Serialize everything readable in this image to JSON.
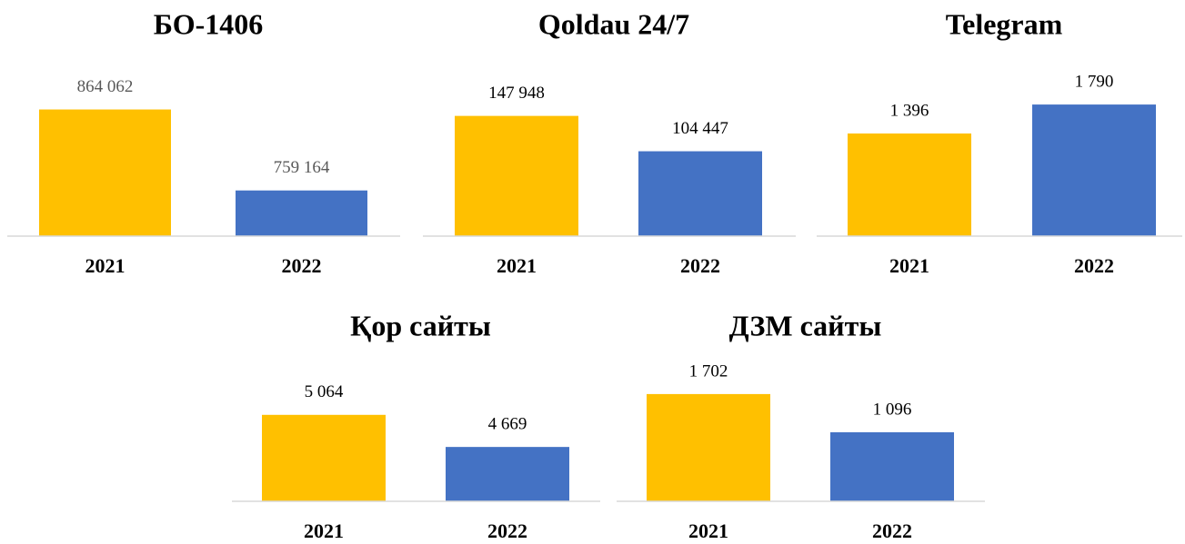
{
  "chart_data": [
    {
      "type": "bar",
      "title": "БО-1406",
      "categories": [
        "2021",
        "2022"
      ],
      "values": [
        864062,
        759164
      ],
      "value_labels": [
        "864 062",
        "759 164"
      ],
      "colors": [
        "#ffc000",
        "#4472c4"
      ],
      "value_label_color": "#595959",
      "ylim": [
        700000,
        900000
      ]
    },
    {
      "type": "bar",
      "title": "Qoldau 24/7",
      "categories": [
        "2021",
        "2022"
      ],
      "values": [
        147948,
        104447
      ],
      "value_labels": [
        "147 948",
        "104 447"
      ],
      "colors": [
        "#ffc000",
        "#4472c4"
      ],
      "value_label_color": "#000000",
      "ylim": [
        0,
        190000
      ]
    },
    {
      "type": "bar",
      "title": "Telegram",
      "categories": [
        "2021",
        "2022"
      ],
      "values": [
        1396,
        1790
      ],
      "value_labels": [
        "1 396",
        "1 790"
      ],
      "colors": [
        "#ffc000",
        "#4472c4"
      ],
      "value_label_color": "#000000",
      "ylim": [
        0,
        2100
      ]
    },
    {
      "type": "bar",
      "title": "Қор сайты",
      "categories": [
        "2021",
        "2022"
      ],
      "values": [
        5064,
        4669
      ],
      "value_labels": [
        "5 064",
        "4 669"
      ],
      "colors": [
        "#ffc000",
        "#4472c4"
      ],
      "value_label_color": "#000000",
      "ylim": [
        4000,
        5900
      ]
    },
    {
      "type": "bar",
      "title": "ДЗМ сайты",
      "categories": [
        "2021",
        "2022"
      ],
      "values": [
        1702,
        1096
      ],
      "value_labels": [
        "1 702",
        "1 096"
      ],
      "colors": [
        "#ffc000",
        "#4472c4"
      ],
      "value_label_color": "#000000",
      "ylim": [
        0,
        2450
      ]
    }
  ]
}
